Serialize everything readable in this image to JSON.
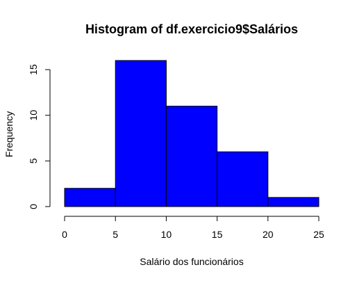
{
  "chart_data": {
    "type": "bar",
    "title": "Histogram of df.exercicio9$Salários",
    "xlabel": "Salário dos funcionários",
    "ylabel": "Frequency",
    "bins": [
      [
        0,
        5
      ],
      [
        5,
        10
      ],
      [
        10,
        15
      ],
      [
        15,
        20
      ],
      [
        20,
        25
      ]
    ],
    "values": [
      2,
      16,
      11,
      6,
      1
    ],
    "x_ticks": [
      0,
      5,
      10,
      15,
      20,
      25
    ],
    "y_ticks": [
      0,
      5,
      10,
      15
    ],
    "xlim": [
      0,
      25
    ],
    "ylim": [
      0,
      16
    ],
    "bar_color": "#0000ff",
    "bar_border_color": "#000000",
    "grid": false,
    "legend": "none"
  }
}
